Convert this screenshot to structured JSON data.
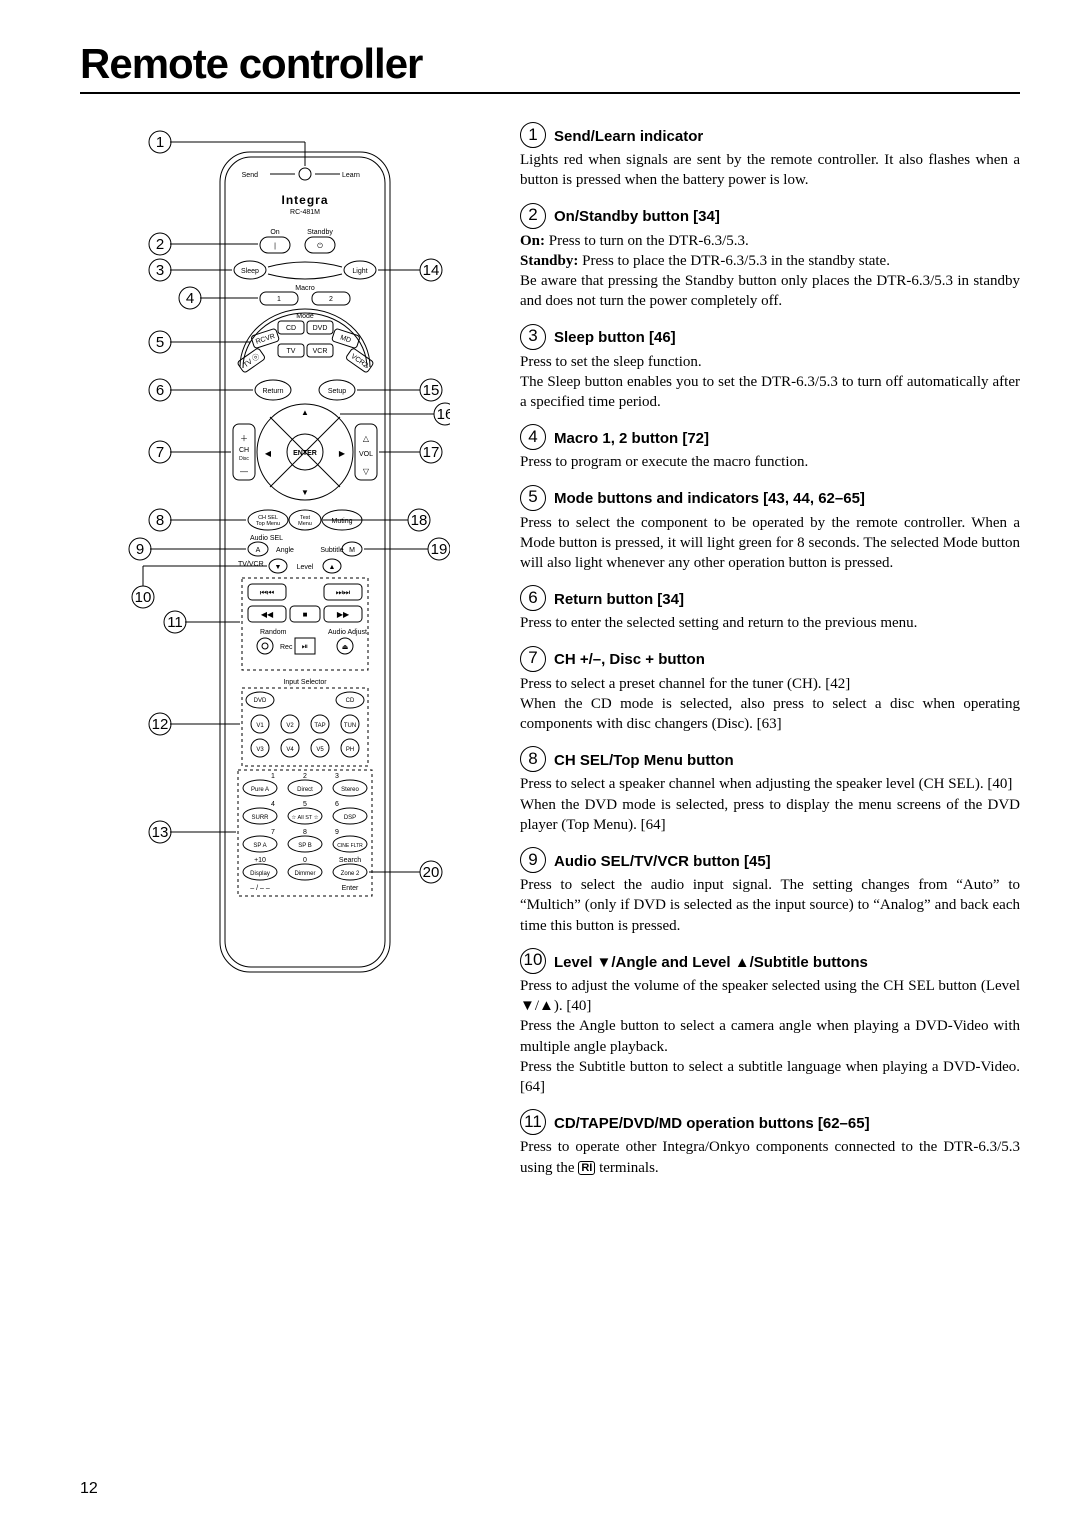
{
  "page_title": "Remote controller",
  "page_number": "12",
  "remote_brand": "Integra",
  "remote_model": "RC-481M",
  "left_callouts": [
    "1",
    "2",
    "3",
    "4",
    "5",
    "6",
    "7",
    "8",
    "9",
    "10",
    "11",
    "12",
    "13"
  ],
  "right_callouts": [
    "14",
    "15",
    "16",
    "17",
    "18",
    "19",
    "20"
  ],
  "entries": [
    {
      "num": "1",
      "title": "Send/Learn indicator",
      "body_html": "Lights red when signals are sent by the remote controller. It also flashes when a button is pressed when the battery power is low."
    },
    {
      "num": "2",
      "title": "On/Standby button [34]",
      "body_html": "<b>On:</b> Press to turn on the DTR-6.3/5.3.<br><b>Standby:</b> Press to place the DTR-6.3/5.3 in the standby state.<br>Be aware that pressing the Standby button only places the DTR-6.3/5.3 in standby and does not turn the power completely off."
    },
    {
      "num": "3",
      "title": "Sleep button [46]",
      "body_html": "Press to set the sleep function.<br>The Sleep button enables you to set the DTR-6.3/5.3 to turn off automatically after a specified time period."
    },
    {
      "num": "4",
      "title": "Macro 1, 2 button [72]",
      "body_html": "Press to program or execute the macro function."
    },
    {
      "num": "5",
      "title": "Mode buttons and indicators [43, 44, 62–65]",
      "body_html": "Press to select the component to be operated by the remote controller. When a Mode button is pressed, it will light green for 8 seconds. The selected Mode button will also light whenever any other operation button is pressed."
    },
    {
      "num": "6",
      "title": "Return button [34]",
      "body_html": "Press to enter the selected setting and return to the previous menu."
    },
    {
      "num": "7",
      "title": "CH +/–, Disc + button",
      "body_html": "Press to select a preset channel for the tuner (CH). [42]<br>When the CD mode is selected, also press to select a disc when operating components with disc changers (Disc). [63]"
    },
    {
      "num": "8",
      "title": "CH SEL/Top Menu button",
      "body_html": "Press to select a speaker channel when adjusting the speaker level (CH SEL). [40]<br>When the DVD mode is selected, press to display the menu screens of the DVD player (Top Menu). [64]"
    },
    {
      "num": "9",
      "title": "Audio SEL/TV/VCR button [45]",
      "body_html": "Press to select the audio input signal. The setting changes from “Auto” to “Multich” (only if DVD is selected as the input source) to “Analog” and back each time this button is pressed."
    },
    {
      "num": "10",
      "title": "Level ▼/Angle and Level ▲/Subtitle buttons",
      "body_html": "Press to adjust the volume of the speaker selected using the CH SEL button (Level ▼/▲). [40]<br>Press the Angle button to select a camera angle when playing a DVD-Video with multiple angle playback.<br>Press the Subtitle button to select a subtitle language when playing a DVD-Video. [64]"
    },
    {
      "num": "11",
      "title": "CD/TAPE/DVD/MD operation buttons [62–65]",
      "body_html": "Press to operate other Integra/Onkyo components connected to the DTR-6.3/5.3 using the <span class='ri'>RI</span> terminals."
    }
  ],
  "diagram_labels": {
    "send": "Send",
    "learn": "Learn",
    "on": "On",
    "standby": "Standby",
    "sleep": "Sleep",
    "light": "Light",
    "macro": "Macro",
    "m1": "1",
    "m2": "2",
    "mode": "Mode",
    "rcvr": "RCVR",
    "cd": "CD",
    "dvd": "DVD",
    "md": "MD",
    "tv": "TV",
    "vcr": "VCR",
    "tvo": "TV ⓞ",
    "vcr2": "VCR2",
    "return": "Return",
    "setup": "Setup",
    "enter": "ENTER",
    "ch": "CH",
    "disc": "Disc",
    "vol": "VOL",
    "chsel": "CH SEL",
    "topmenu": "Top Menu",
    "test": "Test",
    "menu": "Menu",
    "audiosel": "Audio SEL",
    "tvvcr": "TV/VCR",
    "muting": "Muting",
    "angle": "Angle",
    "subtitle": "Subtitle",
    "level": "Level",
    "random": "Random",
    "rec": "Rec",
    "audioadj": "Audio Adjust",
    "inputsel": "Input Selector",
    "is_dvd": "DVD",
    "is_cd": "CD",
    "is_v1": "V1",
    "is_v2": "V2",
    "is_tap": "TAP",
    "is_tun": "TUN",
    "is_v3": "V3",
    "is_v4": "V4",
    "is_v5": "V5",
    "is_ph": "PH",
    "g1": "1",
    "g2": "2",
    "g3": "3",
    "g4": "4",
    "g5": "5",
    "g6": "6",
    "g7": "7",
    "g8": "8",
    "g9": "9",
    "gp10": "+10",
    "g0": "0",
    "gsearch": "Search",
    "purea": "Pure A",
    "direct": "Direct",
    "stereo": "Stereo",
    "surr": "SURR",
    "allst": "☆ All ST ☆",
    "dsp": "DSP",
    "spa": "SP A",
    "spb": "SP B",
    "cineflt": "CINE FLTR",
    "display": "Display",
    "dimmer": "Dimmer",
    "zone2": "Zone 2",
    "enter2": "Enter",
    "dashes": "– / – –"
  },
  "colors": {
    "page_bg": "#ffffff",
    "text": "#000000",
    "diagram_stroke": "#000000"
  }
}
